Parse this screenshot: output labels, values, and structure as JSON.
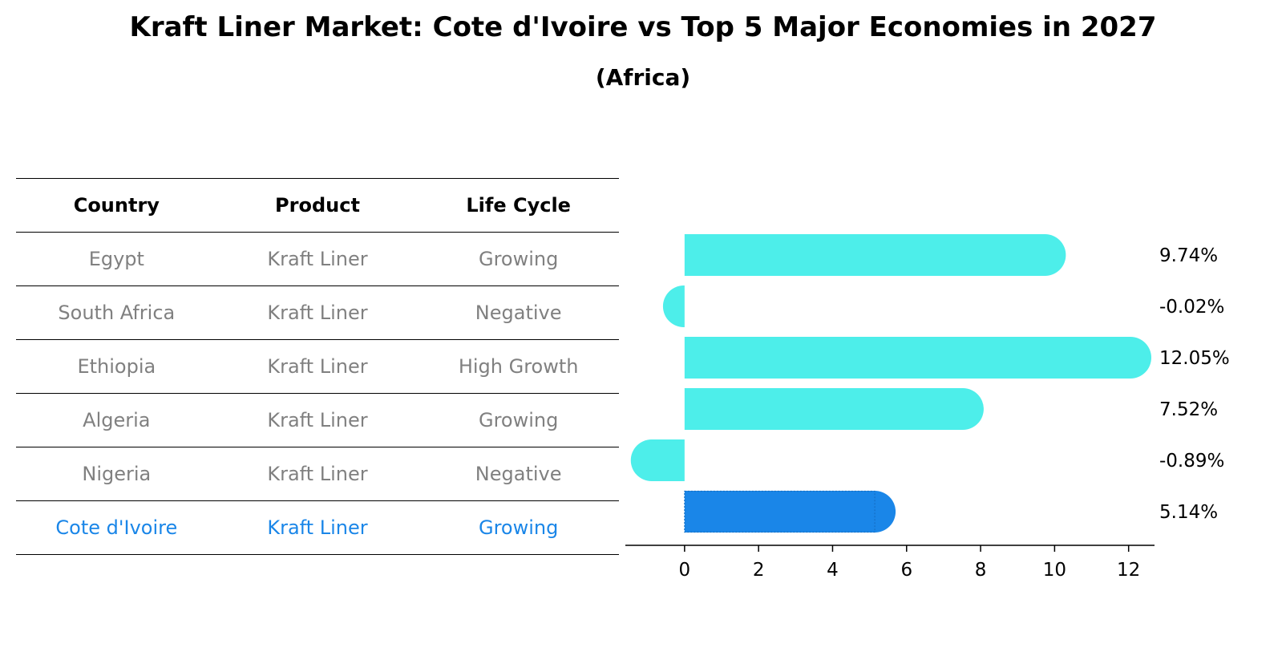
{
  "title": "Kraft Liner Market: Cote d'Ivoire vs Top 5 Major Economies in 2027",
  "subtitle": "(Africa)",
  "table": {
    "headers": [
      "Country",
      "Product",
      "Life Cycle"
    ],
    "rows": [
      {
        "country": "Egypt",
        "product": "Kraft Liner",
        "life_cycle": "Growing",
        "highlight": false
      },
      {
        "country": "South Africa",
        "product": "Kraft Liner",
        "life_cycle": "Negative",
        "highlight": false
      },
      {
        "country": "Ethiopia",
        "product": "Kraft Liner",
        "life_cycle": "High Growth",
        "highlight": false
      },
      {
        "country": "Algeria",
        "product": "Kraft Liner",
        "life_cycle": "Growing",
        "highlight": false
      },
      {
        "country": "Nigeria",
        "product": "Kraft Liner",
        "life_cycle": "Negative",
        "highlight": false
      },
      {
        "country": "Cote d'Ivoire",
        "product": "Kraft Liner",
        "life_cycle": "Growing",
        "highlight": true
      }
    ]
  },
  "colors": {
    "bar": "#4deeea",
    "highlight": "#1a86e8",
    "muted_text": "#808080"
  },
  "chart_data": {
    "type": "bar",
    "orientation": "horizontal",
    "title": "Kraft Liner Market: Cote d'Ivoire vs Top 5 Major Economies in 2027",
    "subtitle": "(Africa)",
    "categories": [
      "Egypt",
      "South Africa",
      "Ethiopia",
      "Algeria",
      "Nigeria",
      "Cote d'Ivoire"
    ],
    "values": [
      9.74,
      -0.02,
      12.05,
      7.52,
      -0.89,
      5.14
    ],
    "value_labels": [
      "9.74%",
      "-0.02%",
      "12.05%",
      "7.52%",
      "-0.89%",
      "5.14%"
    ],
    "highlight_index": 5,
    "xticks": [
      0,
      2,
      4,
      6,
      8,
      10,
      12
    ],
    "xlim": [
      -1.6,
      12.7
    ],
    "xlabel": "",
    "ylabel": "",
    "grid": false
  }
}
